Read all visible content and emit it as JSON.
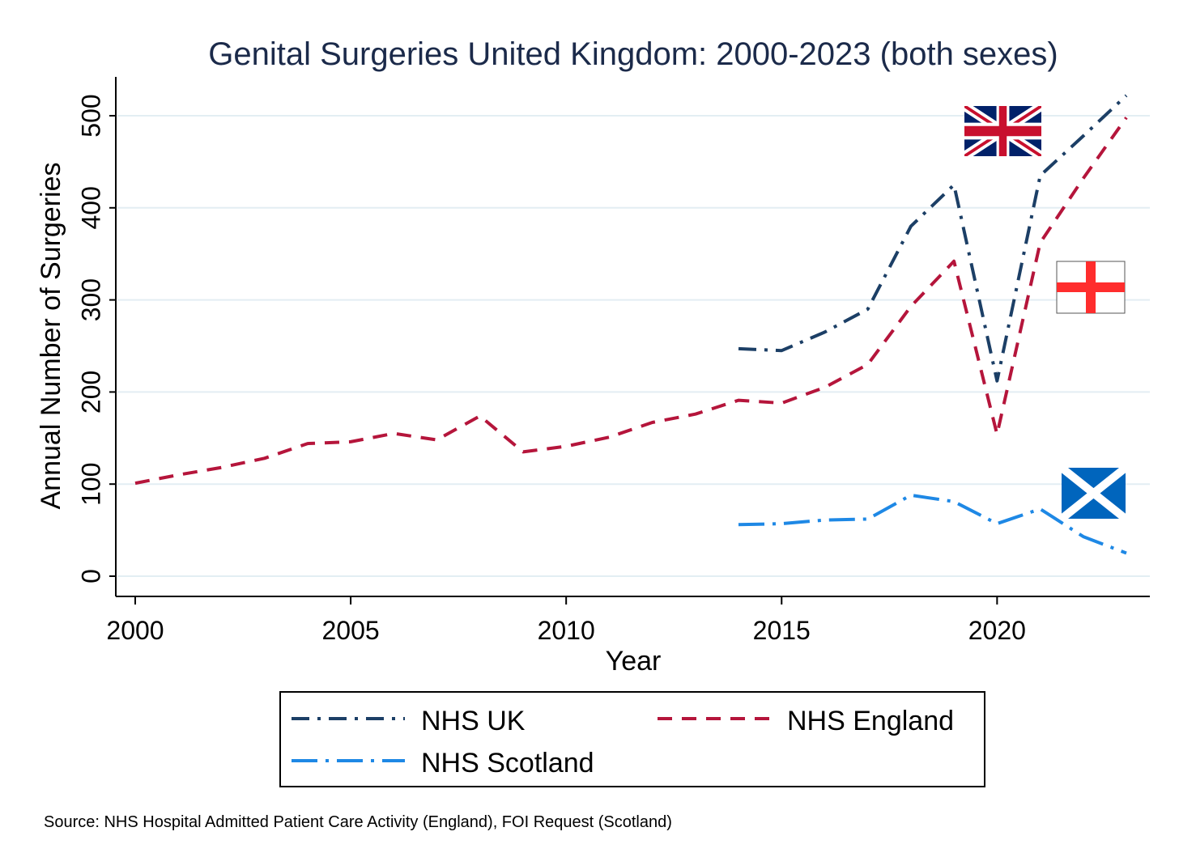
{
  "chart_data": {
    "type": "line",
    "title": "Genital Surgeries United Kingdom: 2000-2023 (both sexes)",
    "xlabel": "Year",
    "ylabel": "Annual Number of Surgeries",
    "xlim": [
      2000,
      2023
    ],
    "ylim": [
      0,
      530
    ],
    "x_ticks": [
      "2000",
      "2005",
      "2010",
      "2015",
      "2020"
    ],
    "y_ticks": [
      "0",
      "100",
      "200",
      "300",
      "400",
      "500"
    ],
    "grid": true,
    "legend_position": "bottom",
    "series": [
      {
        "name": "NHS UK",
        "color": "#1c3f66",
        "dash": "dash-dot",
        "x": [
          2014,
          2015,
          2016,
          2017,
          2018,
          2019,
          2020,
          2021,
          2022,
          2023
        ],
        "y": [
          247,
          245,
          265,
          290,
          380,
          425,
          212,
          435,
          478,
          522
        ]
      },
      {
        "name": "NHS England",
        "color": "#b5153b",
        "dash": "dash",
        "x": [
          2000,
          2001,
          2002,
          2003,
          2004,
          2005,
          2006,
          2007,
          2008,
          2009,
          2010,
          2011,
          2012,
          2013,
          2014,
          2015,
          2016,
          2017,
          2018,
          2019,
          2020,
          2021,
          2022,
          2023
        ],
        "y": [
          101,
          110,
          118,
          128,
          144,
          146,
          155,
          148,
          174,
          135,
          141,
          151,
          167,
          176,
          191,
          188,
          205,
          230,
          293,
          342,
          154,
          362,
          432,
          498
        ]
      },
      {
        "name": "NHS Scotland",
        "color": "#1e88e5",
        "dash": "long-dash-dot",
        "x": [
          2014,
          2015,
          2016,
          2017,
          2018,
          2019,
          2020,
          2021,
          2022,
          2023
        ],
        "y": [
          56,
          57,
          61,
          62,
          88,
          81,
          57,
          73,
          43,
          25
        ]
      }
    ],
    "flags": [
      {
        "icon": "union-jack-flag-icon",
        "near_series": "NHS UK"
      },
      {
        "icon": "england-flag-icon",
        "near_series": "NHS England"
      },
      {
        "icon": "scotland-flag-icon",
        "near_series": "NHS Scotland"
      }
    ],
    "source": "Source: NHS Hospital Admitted Patient Care Activity (England), FOI Request (Scotland)"
  }
}
